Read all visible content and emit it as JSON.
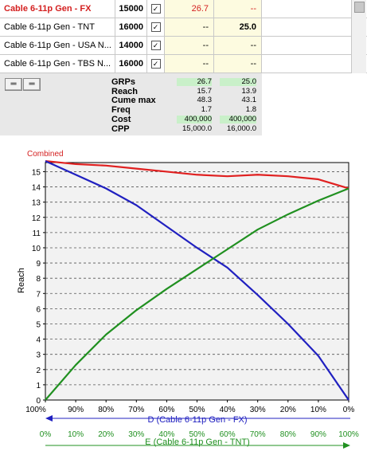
{
  "table": {
    "rows": [
      {
        "name": "Cable 6-11p Gen  - FX",
        "budget": "15000",
        "checked": true,
        "v1": "26.7",
        "v2": "--",
        "active": true
      },
      {
        "name": "Cable 6-11p Gen  - TNT",
        "budget": "16000",
        "checked": true,
        "v1": "--",
        "v2": "25.0",
        "active": false
      },
      {
        "name": "Cable 6-11p Gen  - USA N...",
        "budget": "14000",
        "checked": true,
        "v1": "--",
        "v2": "--",
        "active": false
      },
      {
        "name": "Cable 6-11p Gen  - TBS N...",
        "budget": "16000",
        "checked": true,
        "v1": "--",
        "v2": "--",
        "active": false
      }
    ]
  },
  "stats": {
    "button1": "═",
    "button2": "═",
    "rows": [
      {
        "label": "GRPs",
        "v1": "26.7",
        "v2": "25.0",
        "highlight": true
      },
      {
        "label": "Reach",
        "v1": "15.7",
        "v2": "13.9",
        "highlight": false
      },
      {
        "label": "Cume max",
        "v1": "48.3",
        "v2": "43.1",
        "highlight": false
      },
      {
        "label": "Freq",
        "v1": "1.7",
        "v2": "1.8",
        "highlight": false
      },
      {
        "label": "Cost",
        "v1": "400,000",
        "v2": "400,000",
        "highlight": true
      },
      {
        "label": "CPP",
        "v1": "15,000.0",
        "v2": "16,000.0",
        "highlight": false
      }
    ]
  },
  "chart_data": {
    "type": "line",
    "title": "Combined",
    "ylabel": "Reach",
    "ylim": [
      0,
      15.6
    ],
    "yticks": [
      0,
      1,
      2,
      3,
      4,
      5,
      6,
      7,
      8,
      9,
      10,
      11,
      12,
      13,
      14,
      15
    ],
    "x_top_ticks": [
      "100%",
      "90%",
      "80%",
      "70%",
      "60%",
      "50%",
      "40%",
      "30%",
      "20%",
      "10%",
      "0%"
    ],
    "x_top_label": "D (Cable 6-11p Gen  - FX)",
    "x_bottom_ticks": [
      "0%",
      "10%",
      "20%",
      "30%",
      "40%",
      "50%",
      "60%",
      "70%",
      "80%",
      "90%",
      "100%"
    ],
    "x_bottom_label": "E (Cable 6-11p Gen  - TNT)",
    "grid": "horizontal dashed",
    "colors": {
      "combined": "#e02020",
      "d": "#2020c0",
      "e": "#209020",
      "axis_label_d": "#2020c0",
      "axis_label_e": "#209020"
    },
    "series": [
      {
        "name": "Combined",
        "values": [
          15.7,
          15.5,
          15.4,
          15.2,
          15.0,
          14.8,
          14.7,
          14.8,
          14.7,
          14.5,
          13.9
        ]
      },
      {
        "name": "D (Cable 6-11p Gen  - FX)",
        "values": [
          15.7,
          14.8,
          13.9,
          12.8,
          11.4,
          10.0,
          8.7,
          6.9,
          5.0,
          2.9,
          0.0
        ]
      },
      {
        "name": "E (Cable 6-11p Gen  - TNT)",
        "values": [
          0.0,
          2.3,
          4.3,
          5.9,
          7.3,
          8.6,
          9.9,
          11.2,
          12.2,
          13.1,
          13.9
        ]
      }
    ]
  }
}
